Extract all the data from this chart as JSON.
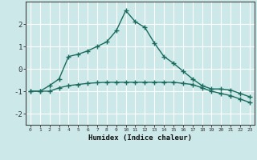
{
  "xlabel": "Humidex (Indice chaleur)",
  "ylabel": "",
  "background_color": "#cce8e8",
  "grid_color": "#ffffff",
  "line_color": "#1a6b5e",
  "x_upper": [
    0,
    1,
    2,
    3,
    4,
    5,
    6,
    7,
    8,
    9,
    10,
    11,
    12,
    13,
    14,
    15,
    16,
    17,
    18,
    19,
    20,
    21,
    22,
    23
  ],
  "y_upper": [
    -1.0,
    -1.0,
    -0.75,
    -0.45,
    0.55,
    0.65,
    0.8,
    1.0,
    1.2,
    1.7,
    2.6,
    2.1,
    1.85,
    1.15,
    0.55,
    0.25,
    -0.1,
    -0.45,
    -0.75,
    -0.9,
    -0.9,
    -0.95,
    -1.1,
    -1.25
  ],
  "x_lower": [
    0,
    1,
    2,
    3,
    4,
    5,
    6,
    7,
    8,
    9,
    10,
    11,
    12,
    13,
    14,
    15,
    16,
    17,
    18,
    19,
    20,
    21,
    22,
    23
  ],
  "y_lower": [
    -1.0,
    -1.0,
    -1.0,
    -0.85,
    -0.75,
    -0.7,
    -0.65,
    -0.62,
    -0.6,
    -0.6,
    -0.6,
    -0.6,
    -0.6,
    -0.6,
    -0.6,
    -0.6,
    -0.65,
    -0.7,
    -0.85,
    -1.0,
    -1.1,
    -1.2,
    -1.35,
    -1.5
  ],
  "ylim": [
    -2.5,
    3.0
  ],
  "xlim": [
    -0.5,
    23.5
  ],
  "yticks": [
    -2,
    -1,
    0,
    1,
    2
  ],
  "xticks": [
    0,
    1,
    2,
    3,
    4,
    5,
    6,
    7,
    8,
    9,
    10,
    11,
    12,
    13,
    14,
    15,
    16,
    17,
    18,
    19,
    20,
    21,
    22,
    23
  ],
  "marker": "+",
  "markersize": 4,
  "linewidth": 1.0
}
